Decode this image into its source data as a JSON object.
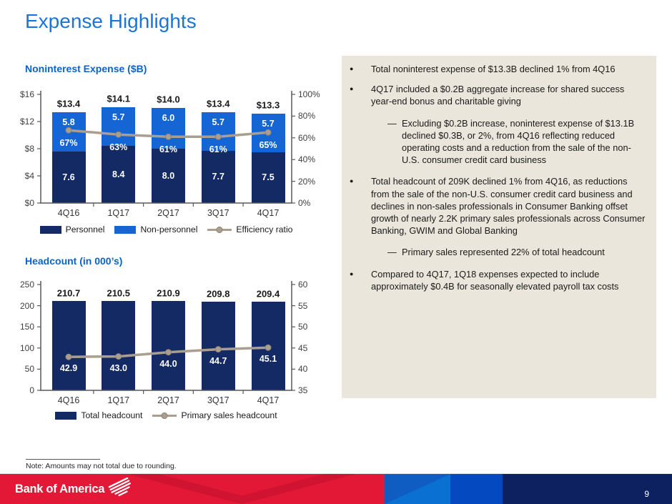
{
  "slide": {
    "title": "Expense Highlights",
    "note": "Note: Amounts may not total due to rounding.",
    "logo_text": "Bank of America",
    "page_number": "9"
  },
  "colors": {
    "navy": "#132a64",
    "blue": "#1566d4",
    "tan": "#a99e8f",
    "title_blue": "#1a75d8",
    "subtitle_blue": "#0c63c6",
    "panel_bg": "#eae6db",
    "footer_red": "#e31837",
    "footer_navy": "#0d2161"
  },
  "panel": {
    "bullets": [
      {
        "text": "Total noninterest expense of $13.3B declined 1% from 4Q16",
        "subs": []
      },
      {
        "text": "4Q17 included a $0.2B aggregate increase for shared success year-end bonus and charitable giving",
        "subs": [
          "Excluding $0.2B increase, noninterest expense of $13.1B declined $0.3B, or 2%, from 4Q16 reflecting reduced operating costs and a reduction from the sale of the non-U.S. consumer credit card business"
        ]
      },
      {
        "text": "Total headcount of 209K declined 1% from 4Q16, as reductions from the sale of the non-U.S. consumer credit card business and declines in non-sales professionals in Consumer Banking offset growth of nearly 2.2K primary sales professionals across Consumer Banking, GWIM and Global Banking",
        "subs": [
          "Primary sales represented 22% of total headcount"
        ]
      },
      {
        "text": "Compared to 4Q17, 1Q18 expenses expected to include approximately $0.4B for seasonally elevated payroll tax costs",
        "subs": []
      }
    ]
  },
  "chart_data": [
    {
      "type": "bar",
      "title": "Noninterest Expense ($B)",
      "categories": [
        "4Q16",
        "1Q17",
        "2Q17",
        "3Q17",
        "4Q17"
      ],
      "series": [
        {
          "name": "Personnel",
          "type": "bar",
          "color": "navy",
          "values": [
            7.6,
            8.4,
            8.0,
            7.7,
            7.5
          ]
        },
        {
          "name": "Non-personnel",
          "type": "bar",
          "color": "blue",
          "values": [
            5.8,
            5.7,
            6.0,
            5.7,
            5.7
          ]
        },
        {
          "name": "Efficiency ratio",
          "type": "line",
          "axis": "right",
          "color": "tan",
          "values": [
            67,
            63,
            61,
            61,
            65
          ]
        }
      ],
      "totals": [
        13.4,
        14.1,
        14.0,
        13.4,
        13.3
      ],
      "left_axis": {
        "range": [
          0,
          16
        ],
        "ticks": [
          "$16",
          "$12",
          "$8",
          "$4",
          "$0"
        ]
      },
      "right_axis": {
        "range": [
          0,
          100
        ],
        "ticks": [
          "100%",
          "80%",
          "60%",
          "40%",
          "20%",
          "0%"
        ]
      },
      "grid": false,
      "legend_position": "bottom"
    },
    {
      "type": "bar",
      "title": "Headcount (in 000’s)",
      "categories": [
        "4Q16",
        "1Q17",
        "2Q17",
        "3Q17",
        "4Q17"
      ],
      "series": [
        {
          "name": "Total headcount",
          "type": "bar",
          "color": "navy",
          "values": [
            210.7,
            210.5,
            210.9,
            209.8,
            209.4
          ]
        },
        {
          "name": "Primary sales headcount",
          "type": "line",
          "axis": "right",
          "color": "tan",
          "values": [
            42.9,
            43.0,
            44.0,
            44.7,
            45.1
          ]
        }
      ],
      "left_axis": {
        "range": [
          0,
          250
        ],
        "ticks": [
          "250",
          "200",
          "150",
          "100",
          "50",
          "0"
        ]
      },
      "right_axis": {
        "range": [
          35,
          60
        ],
        "ticks": [
          "60",
          "55",
          "50",
          "45",
          "40",
          "35"
        ]
      },
      "grid": false,
      "legend_position": "bottom"
    }
  ]
}
